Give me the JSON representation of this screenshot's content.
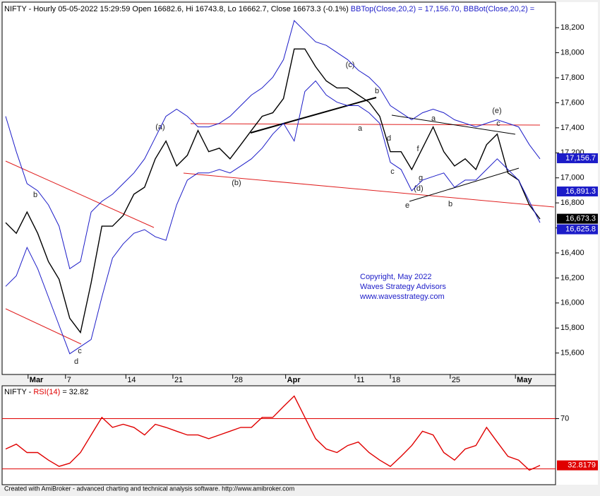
{
  "chart_data": [
    {
      "type": "line",
      "title": "NIFTY - Hourly 05-05-2022 15:29:59 Open 16682.6, Hi 16743.8, Lo 16662.7, Close 16673.3 (-0.1%)",
      "title_bbtop": "BBTop(Close,20,2) = 17,156.70,",
      "title_bbbot": "BBBot(Close,20,2) =",
      "x": [
        0,
        2,
        4,
        6,
        8,
        10,
        12,
        14,
        16,
        18,
        20,
        22,
        24,
        26,
        28,
        30,
        32,
        34,
        36,
        38,
        40,
        42,
        44,
        46,
        48,
        50,
        52,
        54,
        56,
        58,
        60,
        62,
        64,
        66,
        68,
        70,
        72,
        74,
        76,
        78,
        80,
        82,
        84,
        86,
        88,
        90,
        92,
        94,
        96,
        98,
        100
      ],
      "xlim": [
        0,
        100
      ],
      "xticks": [
        {
          "value": 4.2,
          "label": "Mar"
        },
        {
          "value": 11.2,
          "label": "7"
        },
        {
          "value": 22.5,
          "label": "14"
        },
        {
          "value": 31.3,
          "label": "21"
        },
        {
          "value": 42.5,
          "label": "28"
        },
        {
          "value": 52.4,
          "label": "Apr"
        },
        {
          "value": 65.4,
          "label": "11"
        },
        {
          "value": 72,
          "label": "18"
        },
        {
          "value": 83.2,
          "label": "25"
        },
        {
          "value": 95.4,
          "label": "May"
        }
      ],
      "ylim": [
        15440,
        18410
      ],
      "yticks": [
        {
          "value": 15600,
          "label": "15,600"
        },
        {
          "value": 15800,
          "label": "15,800"
        },
        {
          "value": 16000,
          "label": "16,000"
        },
        {
          "value": 16200,
          "label": "16,200"
        },
        {
          "value": 16400,
          "label": "16,400"
        },
        {
          "value": 16600,
          "label": "16,600"
        },
        {
          "value": 16800,
          "label": "16,800"
        },
        {
          "value": 17000,
          "label": "17,000"
        },
        {
          "value": 17200,
          "label": "17,200"
        },
        {
          "value": 17400,
          "label": "17,400"
        },
        {
          "value": 17600,
          "label": "17,600"
        },
        {
          "value": 17800,
          "label": "17,800"
        },
        {
          "value": 18000,
          "label": "18,000"
        },
        {
          "value": 18200,
          "label": "18,200"
        }
      ],
      "series": [
        {
          "color": "#000000",
          "values": [
            16642,
            16557,
            16727,
            16557,
            16331,
            16189,
            15878,
            15764,
            16161,
            16614,
            16614,
            16699,
            16869,
            16925,
            17152,
            17294,
            17095,
            17180,
            17379,
            17209,
            17237,
            17152,
            17265,
            17379,
            17492,
            17520,
            17634,
            18030,
            18030,
            17888,
            17775,
            17719,
            17719,
            17662,
            17605,
            17492,
            17209,
            17209,
            17067,
            17237,
            17407,
            17209,
            17095,
            17152,
            17067,
            17265,
            17350,
            17039,
            16982,
            16784,
            16671
          ]
        },
        {
          "color": "#1c1cc8",
          "values": [
            17492,
            17209,
            16954,
            16897,
            16784,
            16614,
            16274,
            16331,
            16727,
            16812,
            16869,
            16954,
            17039,
            17152,
            17322,
            17492,
            17549,
            17492,
            17407,
            17407,
            17436,
            17492,
            17577,
            17662,
            17719,
            17804,
            17945,
            18257,
            18172,
            18087,
            18059,
            18002,
            17945,
            17860,
            17804,
            17719,
            17577,
            17520,
            17464,
            17520,
            17549,
            17520,
            17464,
            17436,
            17407,
            17436,
            17464,
            17436,
            17407,
            17265,
            17152
          ]
        },
        {
          "color": "#1c1cc8",
          "values": [
            16133,
            16217,
            16444,
            16274,
            16047,
            15821,
            15594,
            15651,
            15708,
            16047,
            16359,
            16472,
            16557,
            16586,
            16529,
            16501,
            16784,
            16982,
            17039,
            17039,
            17067,
            17039,
            17095,
            17152,
            17237,
            17350,
            17436,
            17294,
            17690,
            17775,
            17662,
            17605,
            17577,
            17577,
            17520,
            17436,
            17124,
            17067,
            16897,
            16982,
            17011,
            17039,
            16925,
            16982,
            16982,
            17067,
            17152,
            17067,
            16982,
            16812,
            16642
          ]
        }
      ],
      "price_tags": [
        {
          "value": 17156.7,
          "label": "17,156.7",
          "color": "#1c1cc8"
        },
        {
          "value": 16891.3,
          "label": "16,891.3",
          "color": "#1c1cc8"
        },
        {
          "value": 16673.3,
          "label": "16,673.3",
          "color": "#000000"
        },
        {
          "value": 16625.8,
          "label": "16,625.8",
          "color": "#1c1cc8"
        }
      ],
      "wave_labels": [
        "b",
        "c",
        "d",
        "(a)",
        "(b)",
        "(c)",
        "b",
        "a",
        "d",
        "c",
        "g",
        "(d)",
        "e",
        "f",
        "a",
        "b",
        "(e)",
        "c"
      ],
      "copyright": [
        "Copyright, May 2022",
        "Waves Strategy Advisors",
        "www.wavesstrategy.com"
      ]
    },
    {
      "type": "line",
      "title_name": "NIFTY - ",
      "title_indicator": "RSI(14)",
      "title_value": " = 32.82",
      "x": [
        0,
        2,
        4,
        6,
        8,
        10,
        12,
        14,
        16,
        18,
        20,
        22,
        24,
        26,
        28,
        30,
        32,
        34,
        36,
        38,
        40,
        42,
        44,
        46,
        48,
        50,
        52,
        54,
        56,
        58,
        60,
        62,
        64,
        66,
        68,
        70,
        72,
        74,
        76,
        78,
        80,
        82,
        84,
        86,
        88,
        90,
        92,
        94,
        96,
        98,
        100
      ],
      "xlim": [
        0,
        100
      ],
      "ylim": [
        18,
        95
      ],
      "yticks": [
        70
      ],
      "reference_lines": [
        70,
        30
      ],
      "series": [
        {
          "color": "#e00000",
          "values": [
            45.8,
            49.7,
            43,
            43,
            37,
            32,
            34.5,
            43,
            57,
            71,
            63,
            65.5,
            63,
            57,
            65.5,
            63,
            60,
            57,
            57,
            54,
            57,
            60,
            63,
            63,
            71,
            71,
            79.6,
            88,
            71,
            54,
            45.8,
            43,
            48.6,
            51.4,
            43,
            37,
            32,
            40,
            48.6,
            60,
            57,
            43,
            37,
            45.8,
            48.6,
            63,
            51.4,
            40,
            37,
            29,
            32.8
          ]
        }
      ],
      "price_tags": [
        {
          "value": 32.8179,
          "label": "32.8179",
          "color": "#e00000"
        }
      ]
    }
  ],
  "footer": "Created with AmiBroker - advanced charting and technical analysis software. http://www.amibroker.com"
}
